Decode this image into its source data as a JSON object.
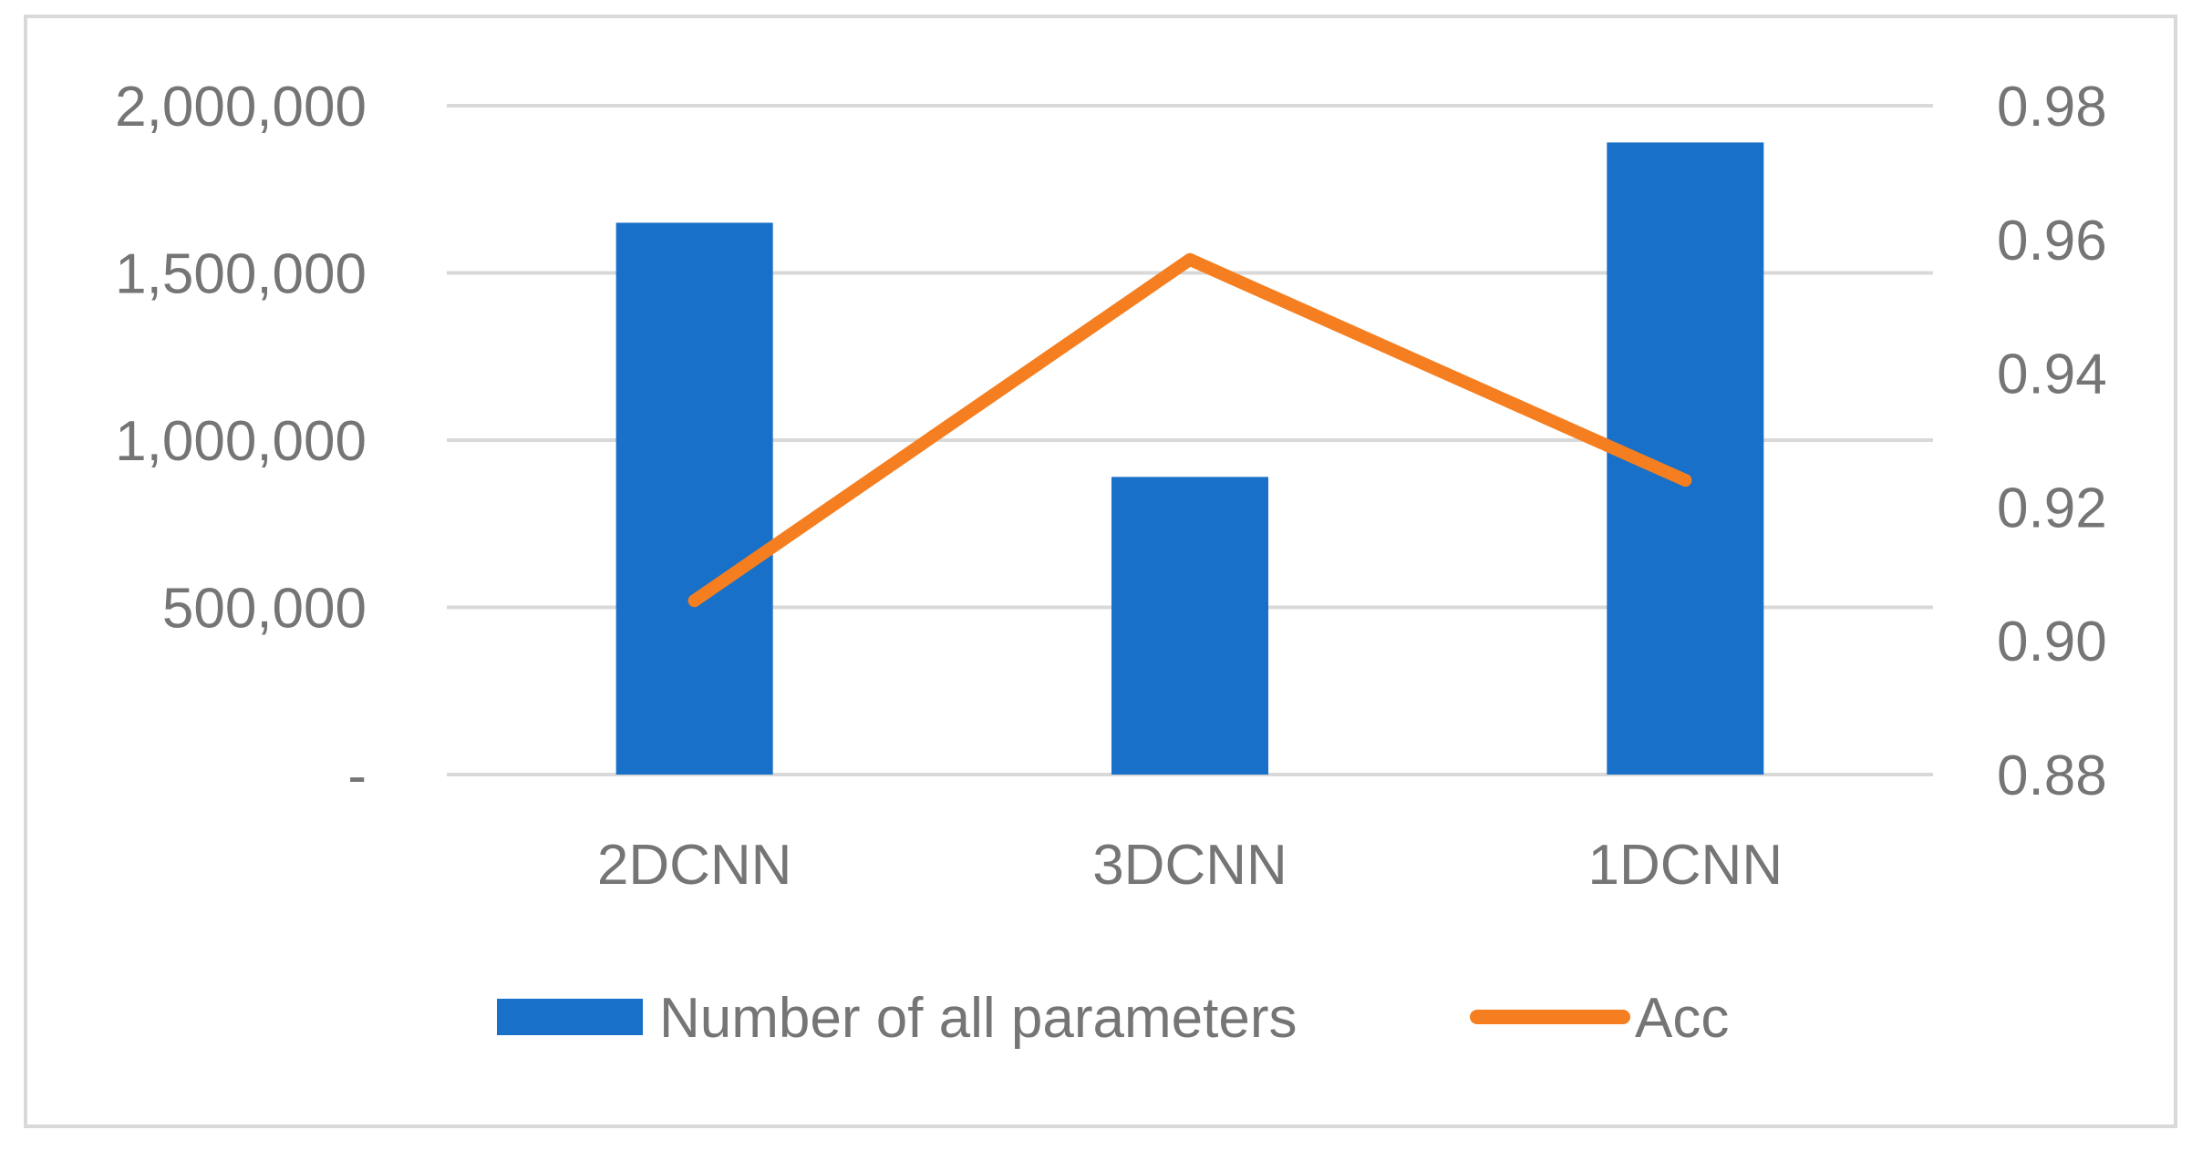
{
  "chart_data": {
    "type": "bar",
    "categories": [
      "2DCNN",
      "3DCNN",
      "1DCNN"
    ],
    "series": [
      {
        "name": "Number of all parameters",
        "kind": "bar",
        "axis": "left",
        "color": "#1870C8",
        "values": [
          1650000,
          890000,
          1890000
        ]
      },
      {
        "name": "Acc",
        "kind": "line",
        "axis": "right",
        "color": "#F57F20",
        "values": [
          0.906,
          0.957,
          0.924
        ]
      }
    ],
    "left_axis": {
      "ylim": [
        0,
        2000000
      ],
      "ticks": [
        0,
        500000,
        1000000,
        1500000,
        2000000
      ],
      "tick_labels": [
        "-",
        "500,000",
        "1,000,000",
        "1,500,000",
        "2,000,000"
      ]
    },
    "right_axis": {
      "ylim": [
        0.88,
        0.98
      ],
      "ticks": [
        0.88,
        0.9,
        0.92,
        0.94,
        0.96,
        0.98
      ],
      "tick_labels": [
        "0.88",
        "0.90",
        "0.92",
        "0.94",
        "0.96",
        "0.98"
      ]
    },
    "grid": true,
    "legend": "bottom",
    "colors": {
      "grid": "#D9D9D9",
      "text": "#757575",
      "border": "#D9D9D9"
    }
  }
}
